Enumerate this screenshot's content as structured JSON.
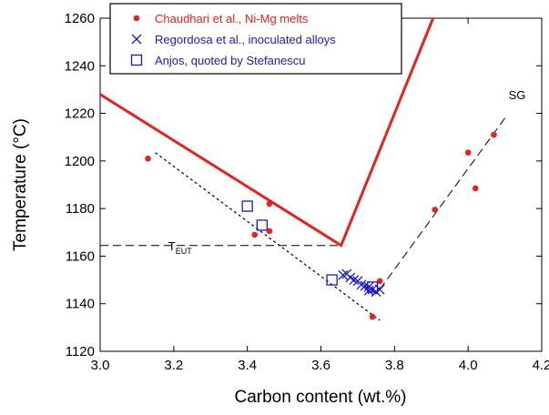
{
  "chart_data": {
    "type": "scatter",
    "xlabel": "Carbon content (wt.%)",
    "ylabel": "Temperature (°C)",
    "xlim": [
      3.0,
      4.2
    ],
    "ylim": [
      1120,
      1260
    ],
    "x_ticks": [
      "3.0",
      "3.2",
      "3.4",
      "3.6",
      "3.8",
      "4.0",
      "4.2"
    ],
    "y_ticks": [
      "1120",
      "1140",
      "1160",
      "1180",
      "1200",
      "1220",
      "1240",
      "1260"
    ],
    "grid": false,
    "legend_position": "top-left",
    "series": [
      {
        "name": "Chaudhari et al., Ni-Mg melts",
        "marker": "filled-circle",
        "color": "#e8201e",
        "points": [
          [
            3.13,
            1201
          ],
          [
            3.42,
            1169
          ],
          [
            3.46,
            1182
          ],
          [
            3.46,
            1170.5
          ],
          [
            3.74,
            1134.5
          ],
          [
            3.76,
            1149.5
          ],
          [
            3.91,
            1179.5
          ],
          [
            4.0,
            1203.5
          ],
          [
            4.02,
            1188.5
          ],
          [
            4.07,
            1211
          ]
        ]
      },
      {
        "name": "Regordosa et al., inoculated alloys",
        "marker": "x",
        "color": "#1a1ac8",
        "points": [
          [
            3.66,
            1152
          ],
          [
            3.67,
            1152.5
          ],
          [
            3.68,
            1151
          ],
          [
            3.69,
            1150
          ],
          [
            3.7,
            1149.5
          ],
          [
            3.71,
            1148
          ],
          [
            3.72,
            1147.5
          ],
          [
            3.73,
            1147
          ],
          [
            3.73,
            1145.5
          ],
          [
            3.74,
            1146
          ],
          [
            3.75,
            1145
          ],
          [
            3.76,
            1146
          ]
        ]
      },
      {
        "name": "Anjos, quoted by Stefanescu",
        "marker": "open-square",
        "color": "#1a1ac8",
        "points": [
          [
            3.4,
            1181
          ],
          [
            3.44,
            1173
          ],
          [
            3.63,
            1150
          ],
          [
            3.74,
            1147
          ]
        ]
      }
    ],
    "lines": [
      {
        "id": "liquidus-red",
        "color": "#e8201e",
        "style": "solid",
        "points": [
          [
            3.0,
            1228
          ],
          [
            3.655,
            1164.5
          ],
          [
            3.91,
            1262
          ]
        ]
      },
      {
        "id": "eutectic-temp",
        "color": "#000000",
        "style": "dashed",
        "points": [
          [
            3.0,
            1164.5
          ],
          [
            3.655,
            1164.5
          ]
        ]
      },
      {
        "id": "sg-line",
        "color": "#000000",
        "style": "dashed",
        "points": [
          [
            3.76,
            1146
          ],
          [
            4.1,
            1218
          ]
        ]
      },
      {
        "id": "dotted-fit",
        "color": "#000000",
        "style": "dotted",
        "points": [
          [
            3.15,
            1203.5
          ],
          [
            3.76,
            1133
          ]
        ]
      }
    ],
    "annotations": [
      {
        "text": "SG",
        "x": 4.11,
        "y": 1226
      },
      {
        "text": "T",
        "sub": "EUT",
        "x": 3.185,
        "y": 1162.5
      }
    ]
  }
}
